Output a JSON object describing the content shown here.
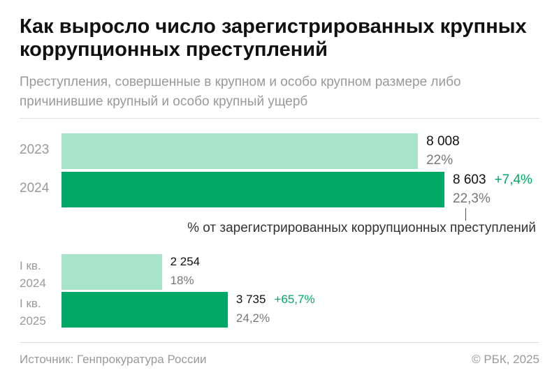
{
  "title": "Как выросло число зарегистрированных крупных коррупционных преступлений",
  "subtitle": "Преступления, совершенные в крупном и особо крупном размере либо причинившие крупный и особо крупный ущерб",
  "chart_data": {
    "type": "bar",
    "orientation": "horizontal",
    "categories": [
      "2023",
      "2024",
      "I кв. 2024",
      "I кв. 2025"
    ],
    "values": [
      8008,
      8603,
      2254,
      3735
    ],
    "value_labels": [
      "8 008",
      "8 603",
      "2 254",
      "3 735"
    ],
    "colors": [
      "#a8e4c9",
      "#00a865",
      "#a8e4c9",
      "#00a865"
    ],
    "share": {
      "values": [
        22,
        22.3,
        18,
        24.2
      ],
      "value_labels": [
        "22%",
        "22,3%",
        "18%",
        "24,2%"
      ]
    },
    "change": {
      "values": [
        null,
        7.4,
        null,
        65.7
      ],
      "value_labels": [
        null,
        "+7,4%",
        null,
        "+65,7%"
      ],
      "color": "#00a865"
    },
    "annotation": "% от зарегистрированных коррупционных преступлений"
  },
  "source": "Источник: Генпрокуратура России",
  "copyright": "© РБК, 2025"
}
